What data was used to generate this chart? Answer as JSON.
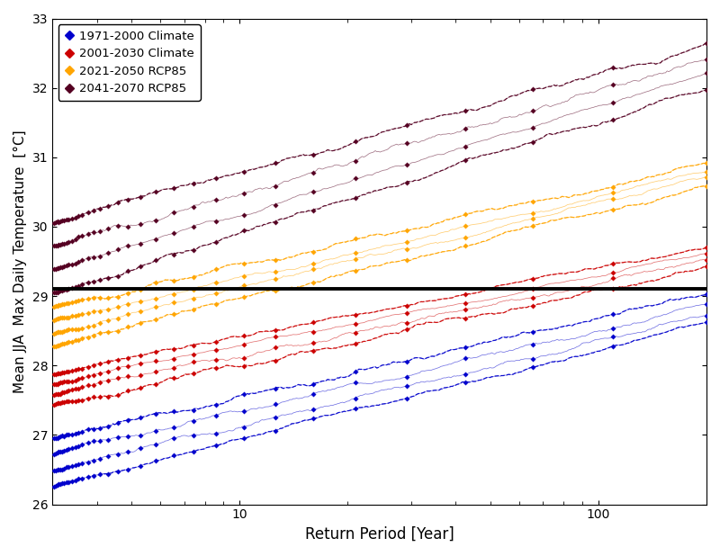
{
  "title": "",
  "xlabel": "Return Period [Year]",
  "ylabel": "Mean JJA  Max Daily Temperature  [°C]",
  "ylim": [
    26,
    33
  ],
  "xlim": [
    3,
    200
  ],
  "hline_y": 29.1,
  "legend_entries": [
    {
      "label": "1971-2000 Climate",
      "color": "#0000cc"
    },
    {
      "label": "2001-2030 Climate",
      "color": "#cc0000"
    },
    {
      "label": "2021-2050 RCP85",
      "color": "#ffa500"
    },
    {
      "label": "2041-2070 RCP85",
      "color": "#550022"
    }
  ],
  "series": {
    "blue": {
      "color": "#0000cc",
      "mean_start": 26.6,
      "mean_end": 28.8,
      "spread": 0.35,
      "n_lines": 4
    },
    "red": {
      "color": "#cc0000",
      "mean_start": 27.65,
      "mean_end": 29.55,
      "spread": 0.22,
      "n_lines": 4
    },
    "orange": {
      "color": "#ffa500",
      "mean_start": 28.55,
      "mean_end": 30.75,
      "spread": 0.28,
      "n_lines": 4
    },
    "purple": {
      "color": "#550022",
      "mean_start": 29.55,
      "mean_end": 32.3,
      "spread": 0.5,
      "n_lines": 4
    }
  }
}
